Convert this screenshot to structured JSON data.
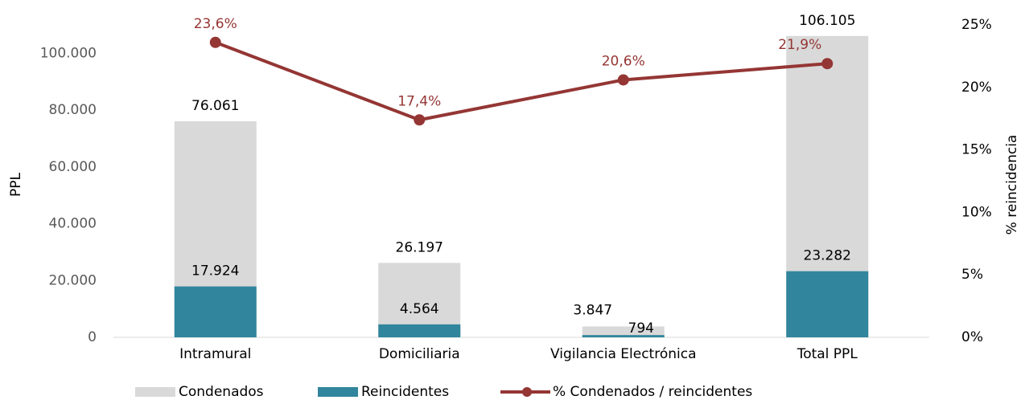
{
  "chart_data": {
    "type": "bar",
    "categories": [
      "Intramural",
      "Domiciliaria",
      "Vigilancia Electrónica",
      "Total PPL"
    ],
    "series": [
      {
        "name": "Condenados",
        "color": "#d9d9d9",
        "values": [
          76061,
          26197,
          3847,
          106105
        ],
        "value_labels": [
          "76.061",
          "26.197",
          "3.847",
          "106.105"
        ]
      },
      {
        "name": "Reincidentes",
        "color": "#31859c",
        "values": [
          17924,
          4564,
          794,
          23282
        ],
        "value_labels": [
          "17.924",
          "4.564",
          "794",
          "23.282"
        ]
      },
      {
        "name": "% Condenados / reincidentes",
        "type": "line",
        "axis": "y2",
        "color": "#943634",
        "values": [
          23.6,
          17.4,
          20.6,
          21.9
        ],
        "value_labels": [
          "23,6%",
          "17,4%",
          "20,6%",
          "21,9%"
        ]
      }
    ],
    "ylabel": "PPL",
    "y2label": "% reincidencia",
    "ylim": [
      0,
      110000
    ],
    "yticks": [
      0,
      {
        "value": 20000,
        "label": "20.000"
      },
      {
        "value": 40000,
        "label": "40.000"
      },
      {
        "value": 60000,
        "label": "60.000"
      },
      {
        "value": 80000,
        "label": "80.000"
      },
      {
        "value": 100000,
        "label": "100.000"
      }
    ],
    "y2lim": [
      0,
      25
    ],
    "y2ticks": [
      {
        "value": 0,
        "label": "0%"
      },
      {
        "value": 5,
        "label": "5%"
      },
      {
        "value": 10,
        "label": "10%"
      },
      {
        "value": 15,
        "label": "15%"
      },
      {
        "value": 20,
        "label": "20%"
      },
      {
        "value": 25,
        "label": "25%"
      }
    ],
    "legend": "bottom"
  }
}
